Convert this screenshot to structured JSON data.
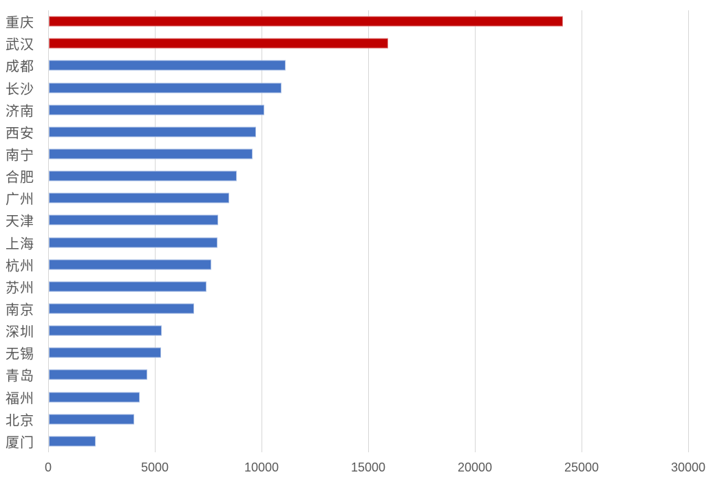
{
  "chart_data": {
    "type": "bar",
    "orientation": "horizontal",
    "categories": [
      "重庆",
      "武汉",
      "成都",
      "长沙",
      "济南",
      "西安",
      "南宁",
      "合肥",
      "广州",
      "天津",
      "上海",
      "杭州",
      "苏州",
      "南京",
      "深圳",
      "无锡",
      "青岛",
      "福州",
      "北京",
      "厦门"
    ],
    "values": [
      24100,
      15900,
      11100,
      10900,
      10100,
      9700,
      9550,
      8800,
      8450,
      7950,
      7900,
      7600,
      7400,
      6800,
      5300,
      5250,
      4600,
      4250,
      4000,
      2200
    ],
    "point_colors": [
      "#C00000",
      "#C00000",
      "#4472C4",
      "#4472C4",
      "#4472C4",
      "#4472C4",
      "#4472C4",
      "#4472C4",
      "#4472C4",
      "#4472C4",
      "#4472C4",
      "#4472C4",
      "#4472C4",
      "#4472C4",
      "#4472C4",
      "#4472C4",
      "#4472C4",
      "#4472C4",
      "#4472C4",
      "#4472C4"
    ],
    "xticks": [
      0,
      5000,
      10000,
      15000,
      20000,
      25000,
      30000
    ],
    "xtick_labels": [
      "0",
      "5000",
      "10000",
      "15000",
      "20000",
      "25000",
      "30000"
    ],
    "xlim": [
      0,
      30000
    ],
    "grid": true,
    "legend": "none",
    "colors": {
      "highlight_bar": "#C00000",
      "default_bar": "#4472C4",
      "gridline": "#D6D6D6",
      "axis_text": "#595959",
      "category_text": "#595959",
      "background": "#FFFFFF"
    }
  }
}
